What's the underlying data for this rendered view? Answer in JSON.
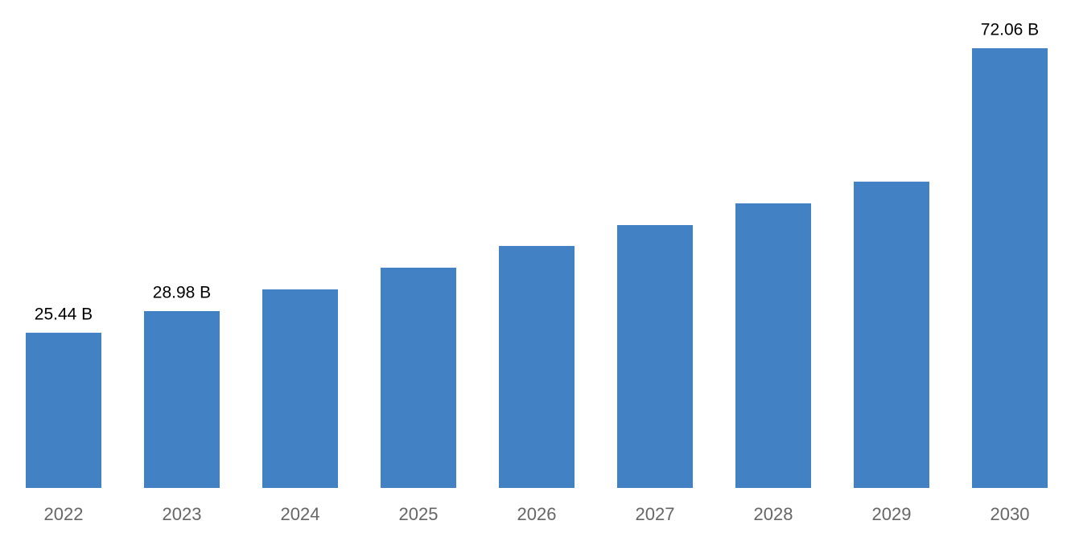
{
  "chart_data": {
    "type": "bar",
    "categories": [
      "2022",
      "2023",
      "2024",
      "2025",
      "2026",
      "2027",
      "2028",
      "2029",
      "2030"
    ],
    "values": [
      25.44,
      28.98,
      32.54,
      36.1,
      39.66,
      43.08,
      46.64,
      50.2,
      72.06
    ],
    "value_labels": [
      "25.44 B",
      "28.98 B",
      null,
      null,
      null,
      null,
      null,
      null,
      "72.06 B"
    ],
    "color": "#4181c4",
    "ylim": [
      0,
      72.06
    ]
  }
}
